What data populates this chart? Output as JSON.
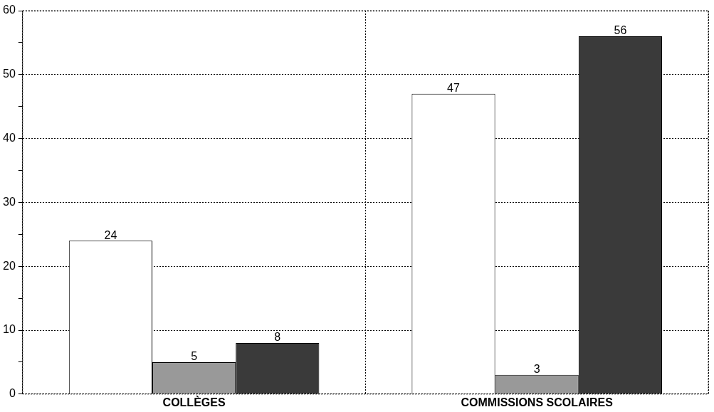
{
  "chart_data": {
    "type": "bar",
    "categories": [
      "COLLÈGES",
      "COMMISSIONS SCOLAIRES"
    ],
    "series": [
      {
        "color": "#ffffff",
        "values": [
          24,
          47
        ]
      },
      {
        "color": "#999999",
        "values": [
          5,
          3
        ]
      },
      {
        "color": "#3a3a3a",
        "values": [
          8,
          56
        ]
      }
    ],
    "ylim": [
      0,
      60
    ],
    "yticks": [
      0,
      {
        "value": 5,
        "label": null
      },
      10,
      {
        "value": 15,
        "label": null
      },
      20,
      {
        "value": 25,
        "label": null
      },
      30,
      {
        "value": 35,
        "label": null
      },
      40,
      {
        "value": 45,
        "label": null
      },
      50,
      {
        "value": 55,
        "label": null
      },
      60
    ],
    "grid": true,
    "legend": false,
    "data_labels": true
  }
}
